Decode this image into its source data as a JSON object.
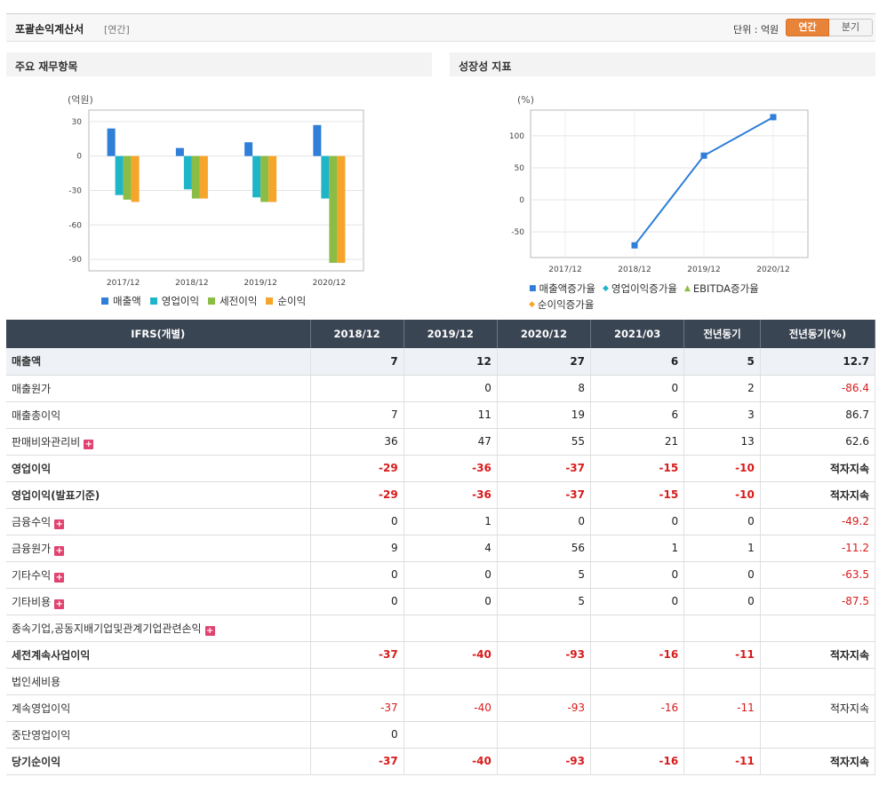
{
  "header": {
    "title": "포괄손익계산서",
    "period": "[연간]",
    "unit_label": "단위 : 억원",
    "toggle": [
      "연간",
      "분기"
    ]
  },
  "panels": {
    "left_title": "주요 재무항목",
    "right_title": "성장성 지표"
  },
  "chart_data": [
    {
      "type": "bar",
      "ylabel": "(억원)",
      "categories": [
        "2017/12",
        "2018/12",
        "2019/12",
        "2020/12"
      ],
      "y_ticks": [
        30,
        0,
        -30,
        -60,
        -90
      ],
      "ylim": [
        -100,
        40
      ],
      "series": [
        {
          "name": "매출액",
          "color": "#2f7ed8",
          "values": [
            24,
            7,
            12,
            27
          ]
        },
        {
          "name": "영업이익",
          "color": "#1fb5c8",
          "values": [
            -34,
            -29,
            -36,
            -37
          ]
        },
        {
          "name": "세전이익",
          "color": "#8bbc45",
          "values": [
            -38,
            -37,
            -40,
            -93
          ]
        },
        {
          "name": "순이익",
          "color": "#f5a52a",
          "values": [
            -40,
            -37,
            -40,
            -93
          ]
        }
      ]
    },
    {
      "type": "line",
      "ylabel": "(%)",
      "categories": [
        "2017/12",
        "2018/12",
        "2019/12",
        "2020/12"
      ],
      "y_ticks": [
        100,
        50,
        0,
        -50
      ],
      "ylim": [
        -90,
        140
      ],
      "series": [
        {
          "name": "매출액증가율",
          "color": "#2f7ed8",
          "marker": "square",
          "values": [
            null,
            -71,
            69,
            129
          ]
        },
        {
          "name": "영업이익증가율",
          "color": "#1fb5c8",
          "marker": "diamond",
          "values": [
            null,
            null,
            null,
            null
          ]
        },
        {
          "name": "EBITDA증가율",
          "color": "#8bbc45",
          "marker": "triangle",
          "values": [
            null,
            null,
            null,
            null
          ]
        },
        {
          "name": "순이익증가율",
          "color": "#f5a52a",
          "marker": "diamond",
          "values": [
            null,
            null,
            null,
            null
          ]
        }
      ]
    }
  ],
  "table": {
    "headers": [
      "IFRS(개별)",
      "2018/12",
      "2019/12",
      "2020/12",
      "2021/03",
      "전년동기",
      "전년동기(%)"
    ],
    "rows": [
      {
        "label": "매출액",
        "cells": [
          "7",
          "12",
          "27",
          "6",
          "5",
          "12.7"
        ],
        "bold": true,
        "plus": false
      },
      {
        "label": "매출원가",
        "cells": [
          "",
          "0",
          "8",
          "0",
          "2",
          "-86.4"
        ],
        "bold": false,
        "plus": false
      },
      {
        "label": "매출총이익",
        "cells": [
          "7",
          "11",
          "19",
          "6",
          "3",
          "86.7"
        ],
        "bold": false,
        "plus": false
      },
      {
        "label": "판매비와관리비",
        "cells": [
          "36",
          "47",
          "55",
          "21",
          "13",
          "62.6"
        ],
        "bold": false,
        "plus": true
      },
      {
        "label": "영업이익",
        "cells": [
          "-29",
          "-36",
          "-37",
          "-15",
          "-10",
          "적자지속"
        ],
        "bold": true,
        "plus": false
      },
      {
        "label": "영업이익(발표기준)",
        "cells": [
          "-29",
          "-36",
          "-37",
          "-15",
          "-10",
          "적자지속"
        ],
        "bold": true,
        "plus": false
      },
      {
        "label": "금융수익",
        "cells": [
          "0",
          "1",
          "0",
          "0",
          "0",
          "-49.2"
        ],
        "bold": false,
        "plus": true
      },
      {
        "label": "금융원가",
        "cells": [
          "9",
          "4",
          "56",
          "1",
          "1",
          "-11.2"
        ],
        "bold": false,
        "plus": true
      },
      {
        "label": "기타수익",
        "cells": [
          "0",
          "0",
          "5",
          "0",
          "0",
          "-63.5"
        ],
        "bold": false,
        "plus": true
      },
      {
        "label": "기타비용",
        "cells": [
          "0",
          "0",
          "5",
          "0",
          "0",
          "-87.5"
        ],
        "bold": false,
        "plus": true
      },
      {
        "label": "종속기업,공동지배기업및관계기업관련손익",
        "cells": [
          "",
          "",
          "",
          "",
          "",
          ""
        ],
        "bold": false,
        "plus": true
      },
      {
        "label": "세전계속사업이익",
        "cells": [
          "-37",
          "-40",
          "-93",
          "-16",
          "-11",
          "적자지속"
        ],
        "bold": true,
        "plus": false
      },
      {
        "label": "법인세비용",
        "cells": [
          "",
          "",
          "",
          "",
          "",
          ""
        ],
        "bold": false,
        "plus": false
      },
      {
        "label": "계속영업이익",
        "cells": [
          "-37",
          "-40",
          "-93",
          "-16",
          "-11",
          "적자지속"
        ],
        "bold": false,
        "plus": false
      },
      {
        "label": "중단영업이익",
        "cells": [
          "0",
          "",
          "",
          "",
          "",
          ""
        ],
        "bold": false,
        "plus": false
      },
      {
        "label": "당기순이익",
        "cells": [
          "-37",
          "-40",
          "-93",
          "-16",
          "-11",
          "적자지속"
        ],
        "bold": true,
        "plus": false
      }
    ]
  }
}
